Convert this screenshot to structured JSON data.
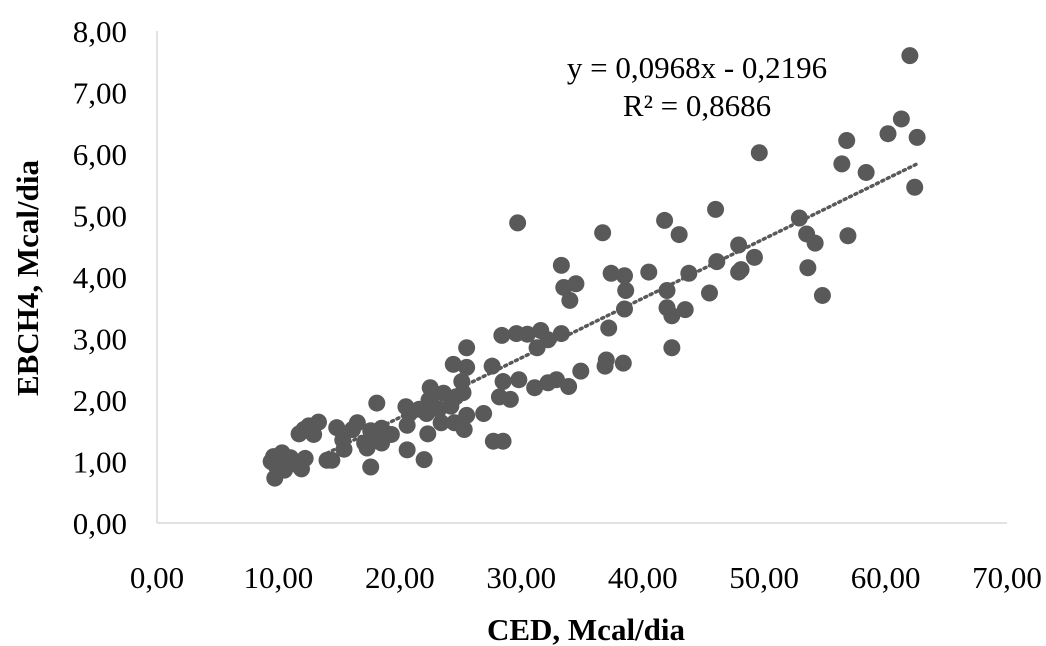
{
  "chart_data": {
    "type": "scatter",
    "xlabel": "CED, Mcal/dia",
    "ylabel": "EBCH4, Mcal/dia",
    "xlim": [
      0,
      70
    ],
    "ylim": [
      0,
      8
    ],
    "x_ticks": [
      "0,00",
      "10,00",
      "20,00",
      "30,00",
      "40,00",
      "50,00",
      "60,00",
      "70,00"
    ],
    "y_ticks": [
      "0,00",
      "1,00",
      "2,00",
      "3,00",
      "4,00",
      "5,00",
      "6,00",
      "7,00",
      "8,00"
    ],
    "grid": false,
    "marker_color": "#595959",
    "trendline": {
      "style": "dotted",
      "color": "#595959",
      "slope": 0.0968,
      "intercept": -0.2196,
      "x_range": [
        14,
        62.5
      ],
      "equation": "y = 0,0968x - 0,2196",
      "r_squared": "R² = 0,8686"
    },
    "points": [
      [
        62,
        7.6
      ],
      [
        61.3,
        6.57
      ],
      [
        62.6,
        6.27
      ],
      [
        60.2,
        6.33
      ],
      [
        56.8,
        6.22
      ],
      [
        56.4,
        5.84
      ],
      [
        58.4,
        5.7
      ],
      [
        62.4,
        5.46
      ],
      [
        49.6,
        6.02
      ],
      [
        52.9,
        4.96
      ],
      [
        53.5,
        4.7
      ],
      [
        54.2,
        4.55
      ],
      [
        56.9,
        4.67
      ],
      [
        53.6,
        4.15
      ],
      [
        54.8,
        3.7
      ],
      [
        46,
        5.1
      ],
      [
        46.1,
        4.25
      ],
      [
        47.9,
        4.52
      ],
      [
        48.1,
        4.12
      ],
      [
        47.9,
        4.08
      ],
      [
        49.2,
        4.32
      ],
      [
        45.5,
        3.74
      ],
      [
        41.8,
        4.92
      ],
      [
        43,
        4.69
      ],
      [
        43.8,
        4.06
      ],
      [
        40.5,
        4.08
      ],
      [
        42,
        3.78
      ],
      [
        42,
        3.5
      ],
      [
        42.4,
        3.37
      ],
      [
        43.5,
        3.47
      ],
      [
        42.4,
        2.85
      ],
      [
        36.7,
        4.72
      ],
      [
        37.4,
        4.06
      ],
      [
        38.5,
        4.02
      ],
      [
        38.6,
        3.78
      ],
      [
        38.5,
        3.48
      ],
      [
        37.2,
        3.17
      ],
      [
        37,
        2.65
      ],
      [
        36.9,
        2.55
      ],
      [
        38.4,
        2.6
      ],
      [
        33.3,
        4.19
      ],
      [
        33.5,
        3.83
      ],
      [
        34.5,
        3.89
      ],
      [
        34,
        3.62
      ],
      [
        33.3,
        3.08
      ],
      [
        32.2,
        2.98
      ],
      [
        31.6,
        3.13
      ],
      [
        31.3,
        2.85
      ],
      [
        29.7,
        4.88
      ],
      [
        29.6,
        3.08
      ],
      [
        28.4,
        3.05
      ],
      [
        30.5,
        3.07
      ],
      [
        34.9,
        2.47
      ],
      [
        33.9,
        2.22
      ],
      [
        32.9,
        2.33
      ],
      [
        32.2,
        2.28
      ],
      [
        31.1,
        2.2
      ],
      [
        29.8,
        2.33
      ],
      [
        29.1,
        2.01
      ],
      [
        28.5,
        2.3
      ],
      [
        28.2,
        2.05
      ],
      [
        27.6,
        2.55
      ],
      [
        26.9,
        1.78
      ],
      [
        27.7,
        1.33
      ],
      [
        28.5,
        1.33
      ],
      [
        25.5,
        2.85
      ],
      [
        24.4,
        2.58
      ],
      [
        25.1,
        2.3
      ],
      [
        25.5,
        2.53
      ],
      [
        24.6,
        2.05
      ],
      [
        25.2,
        2.12
      ],
      [
        24.2,
        1.9
      ],
      [
        25.5,
        1.75
      ],
      [
        24.5,
        1.63
      ],
      [
        25.3,
        1.52
      ],
      [
        23.6,
        2.11
      ],
      [
        23.2,
        1.85
      ],
      [
        22.8,
        2.1
      ],
      [
        22.5,
        2.2
      ],
      [
        23.4,
        1.63
      ],
      [
        22.2,
        1.78
      ],
      [
        22.4,
        2.0
      ],
      [
        21.6,
        1.85
      ],
      [
        20.8,
        1.78
      ],
      [
        22.3,
        1.45
      ],
      [
        20.6,
        1.59
      ],
      [
        20.5,
        1.89
      ],
      [
        20.6,
        1.19
      ],
      [
        22,
        1.03
      ],
      [
        18.1,
        1.95
      ],
      [
        18.5,
        1.54
      ],
      [
        19.3,
        1.44
      ],
      [
        18.5,
        1.3
      ],
      [
        17.6,
        1.5
      ],
      [
        17.9,
        1.44
      ],
      [
        17.1,
        1.3
      ],
      [
        17.3,
        1.22
      ],
      [
        16.5,
        1.63
      ],
      [
        16.1,
        1.52
      ],
      [
        15.3,
        1.35
      ],
      [
        15.4,
        1.2
      ],
      [
        14.8,
        1.55
      ],
      [
        17.6,
        0.91
      ],
      [
        13.3,
        1.64
      ],
      [
        12.5,
        1.58
      ],
      [
        12.1,
        1.52
      ],
      [
        11.7,
        1.45
      ],
      [
        12.9,
        1.44
      ],
      [
        14,
        1.02
      ],
      [
        14.4,
        1.02
      ],
      [
        12.2,
        1.05
      ],
      [
        11.9,
        0.88
      ],
      [
        11,
        1.06
      ],
      [
        11.5,
        0.95
      ],
      [
        10.7,
        0.99
      ],
      [
        10.3,
        1.14
      ],
      [
        10.5,
        0.86
      ],
      [
        9.6,
        1.08
      ],
      [
        9.4,
        1.0
      ],
      [
        9.8,
        0.93
      ],
      [
        9.7,
        0.73
      ]
    ]
  }
}
